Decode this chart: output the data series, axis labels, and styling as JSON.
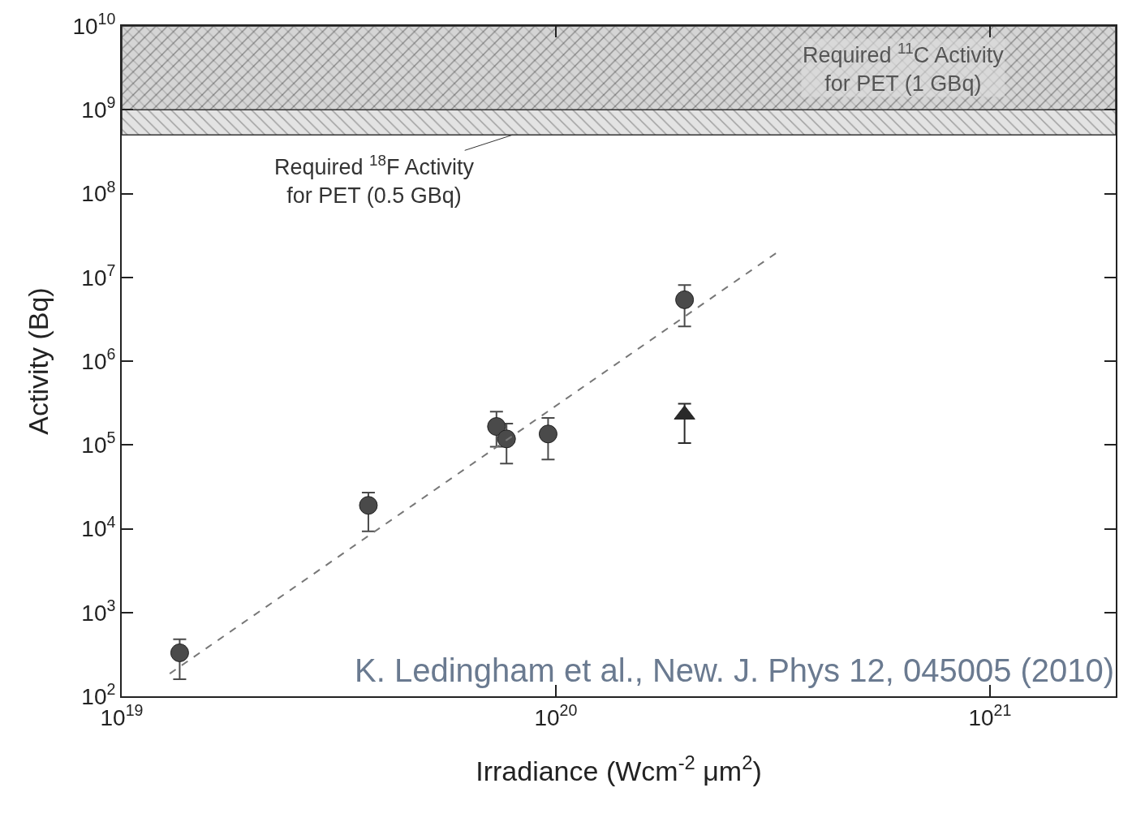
{
  "chart_data": {
    "type": "scatter",
    "xlabel": "Irradiance (Wcm$^{-2}$ μm$^{2}$)",
    "ylabel": "Activity (Bq)",
    "log": "xy",
    "xlim": [
      1e+19,
      1.95e+21
    ],
    "ylim": [
      100,
      10000000000.0
    ],
    "xticks": [
      {
        "value": 1e+19,
        "label": "10$^{19}$"
      },
      {
        "value": 1e+20,
        "label": "10$^{20}$"
      },
      {
        "value": 1e+21,
        "label": "10$^{21}$"
      }
    ],
    "yticks": [
      {
        "value": 100,
        "label": "10$^{2}$"
      },
      {
        "value": 1000,
        "label": "10$^{3}$"
      },
      {
        "value": 10000,
        "label": "10$^{4}$"
      },
      {
        "value": 100000,
        "label": "10$^{5}$"
      },
      {
        "value": 1000000,
        "label": "10$^{6}$"
      },
      {
        "value": 10000000,
        "label": "10$^{7}$"
      },
      {
        "value": 100000000,
        "label": "10$^{8}$"
      },
      {
        "value": 1000000000,
        "label": "10$^{9}$"
      },
      {
        "value": 10000000000,
        "label": "10$^{10}$"
      }
    ],
    "series": [
      {
        "marker": "circle",
        "color": "#4a4a4a",
        "x": [
          1.36e+19,
          3.7e+19,
          7.3e+19,
          7.7e+19,
          9.6e+19,
          1.98e+20
        ],
        "values": [
          330,
          19000,
          166000,
          118000,
          135000,
          5400000
        ],
        "errors": [
          [
            160,
            480
          ],
          [
            9300,
            27000
          ],
          [
            95000,
            250000
          ],
          [
            60000,
            180000
          ],
          [
            67000,
            210000
          ],
          [
            2600000,
            8100000
          ]
        ]
      },
      {
        "marker": "triangle",
        "color": "#2a2a2a",
        "x": [
          1.98e+20
        ],
        "values": [
          230000
        ],
        "errors": [
          [
            105000,
            310000
          ]
        ]
      },
      {
        "type": "line",
        "line_style": "dashed",
        "color": "#777777",
        "x": [
          1.29e+19,
          3.22e+20
        ],
        "values": [
          186,
          19500000
        ]
      }
    ],
    "bands": [
      {
        "axis": "y",
        "from": 500000000,
        "to": 10000000000,
        "label": "Required $^{18}$F Activity\nfor PET (0.5 GBq)",
        "color": "#555555"
      },
      {
        "axis": "y",
        "from": 1000000000,
        "to": 10000000000,
        "label": "Required $^{11}$C Activity\nfor PET (1 GBq)",
        "color": "#444444"
      }
    ],
    "annotations": [
      "K. Ledingham et al., New. J. Phys 12, 045005 (2010)"
    ]
  }
}
